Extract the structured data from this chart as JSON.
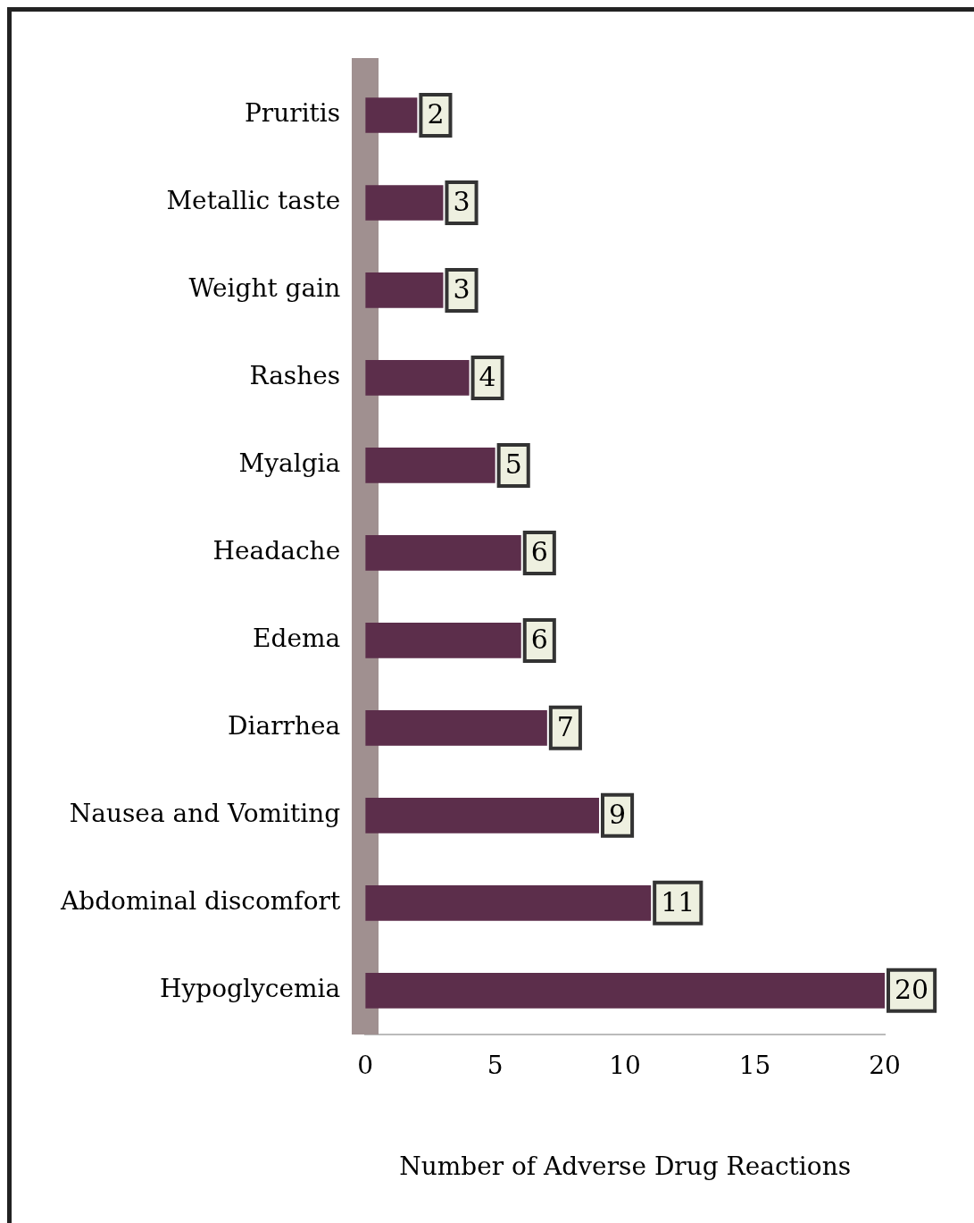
{
  "chart_data": {
    "type": "bar",
    "orientation": "horizontal",
    "xlabel": "Number of Adverse Drug Reactions",
    "categories": [
      "Pruritis",
      "Metallic taste",
      "Weight gain",
      "Rashes",
      "Myalgia",
      "Headache",
      "Edema",
      "Diarrhea",
      "Nausea and Vomiting",
      "Abdominal discomfort",
      "Hypoglycemia"
    ],
    "values": [
      2,
      3,
      3,
      4,
      5,
      6,
      6,
      7,
      9,
      11,
      20
    ],
    "color": "#5c2e4b",
    "xlim": [
      0,
      20
    ],
    "xticks": [
      0,
      5,
      10,
      15,
      20
    ],
    "data_labels": true,
    "grid": false,
    "legend": false
  }
}
